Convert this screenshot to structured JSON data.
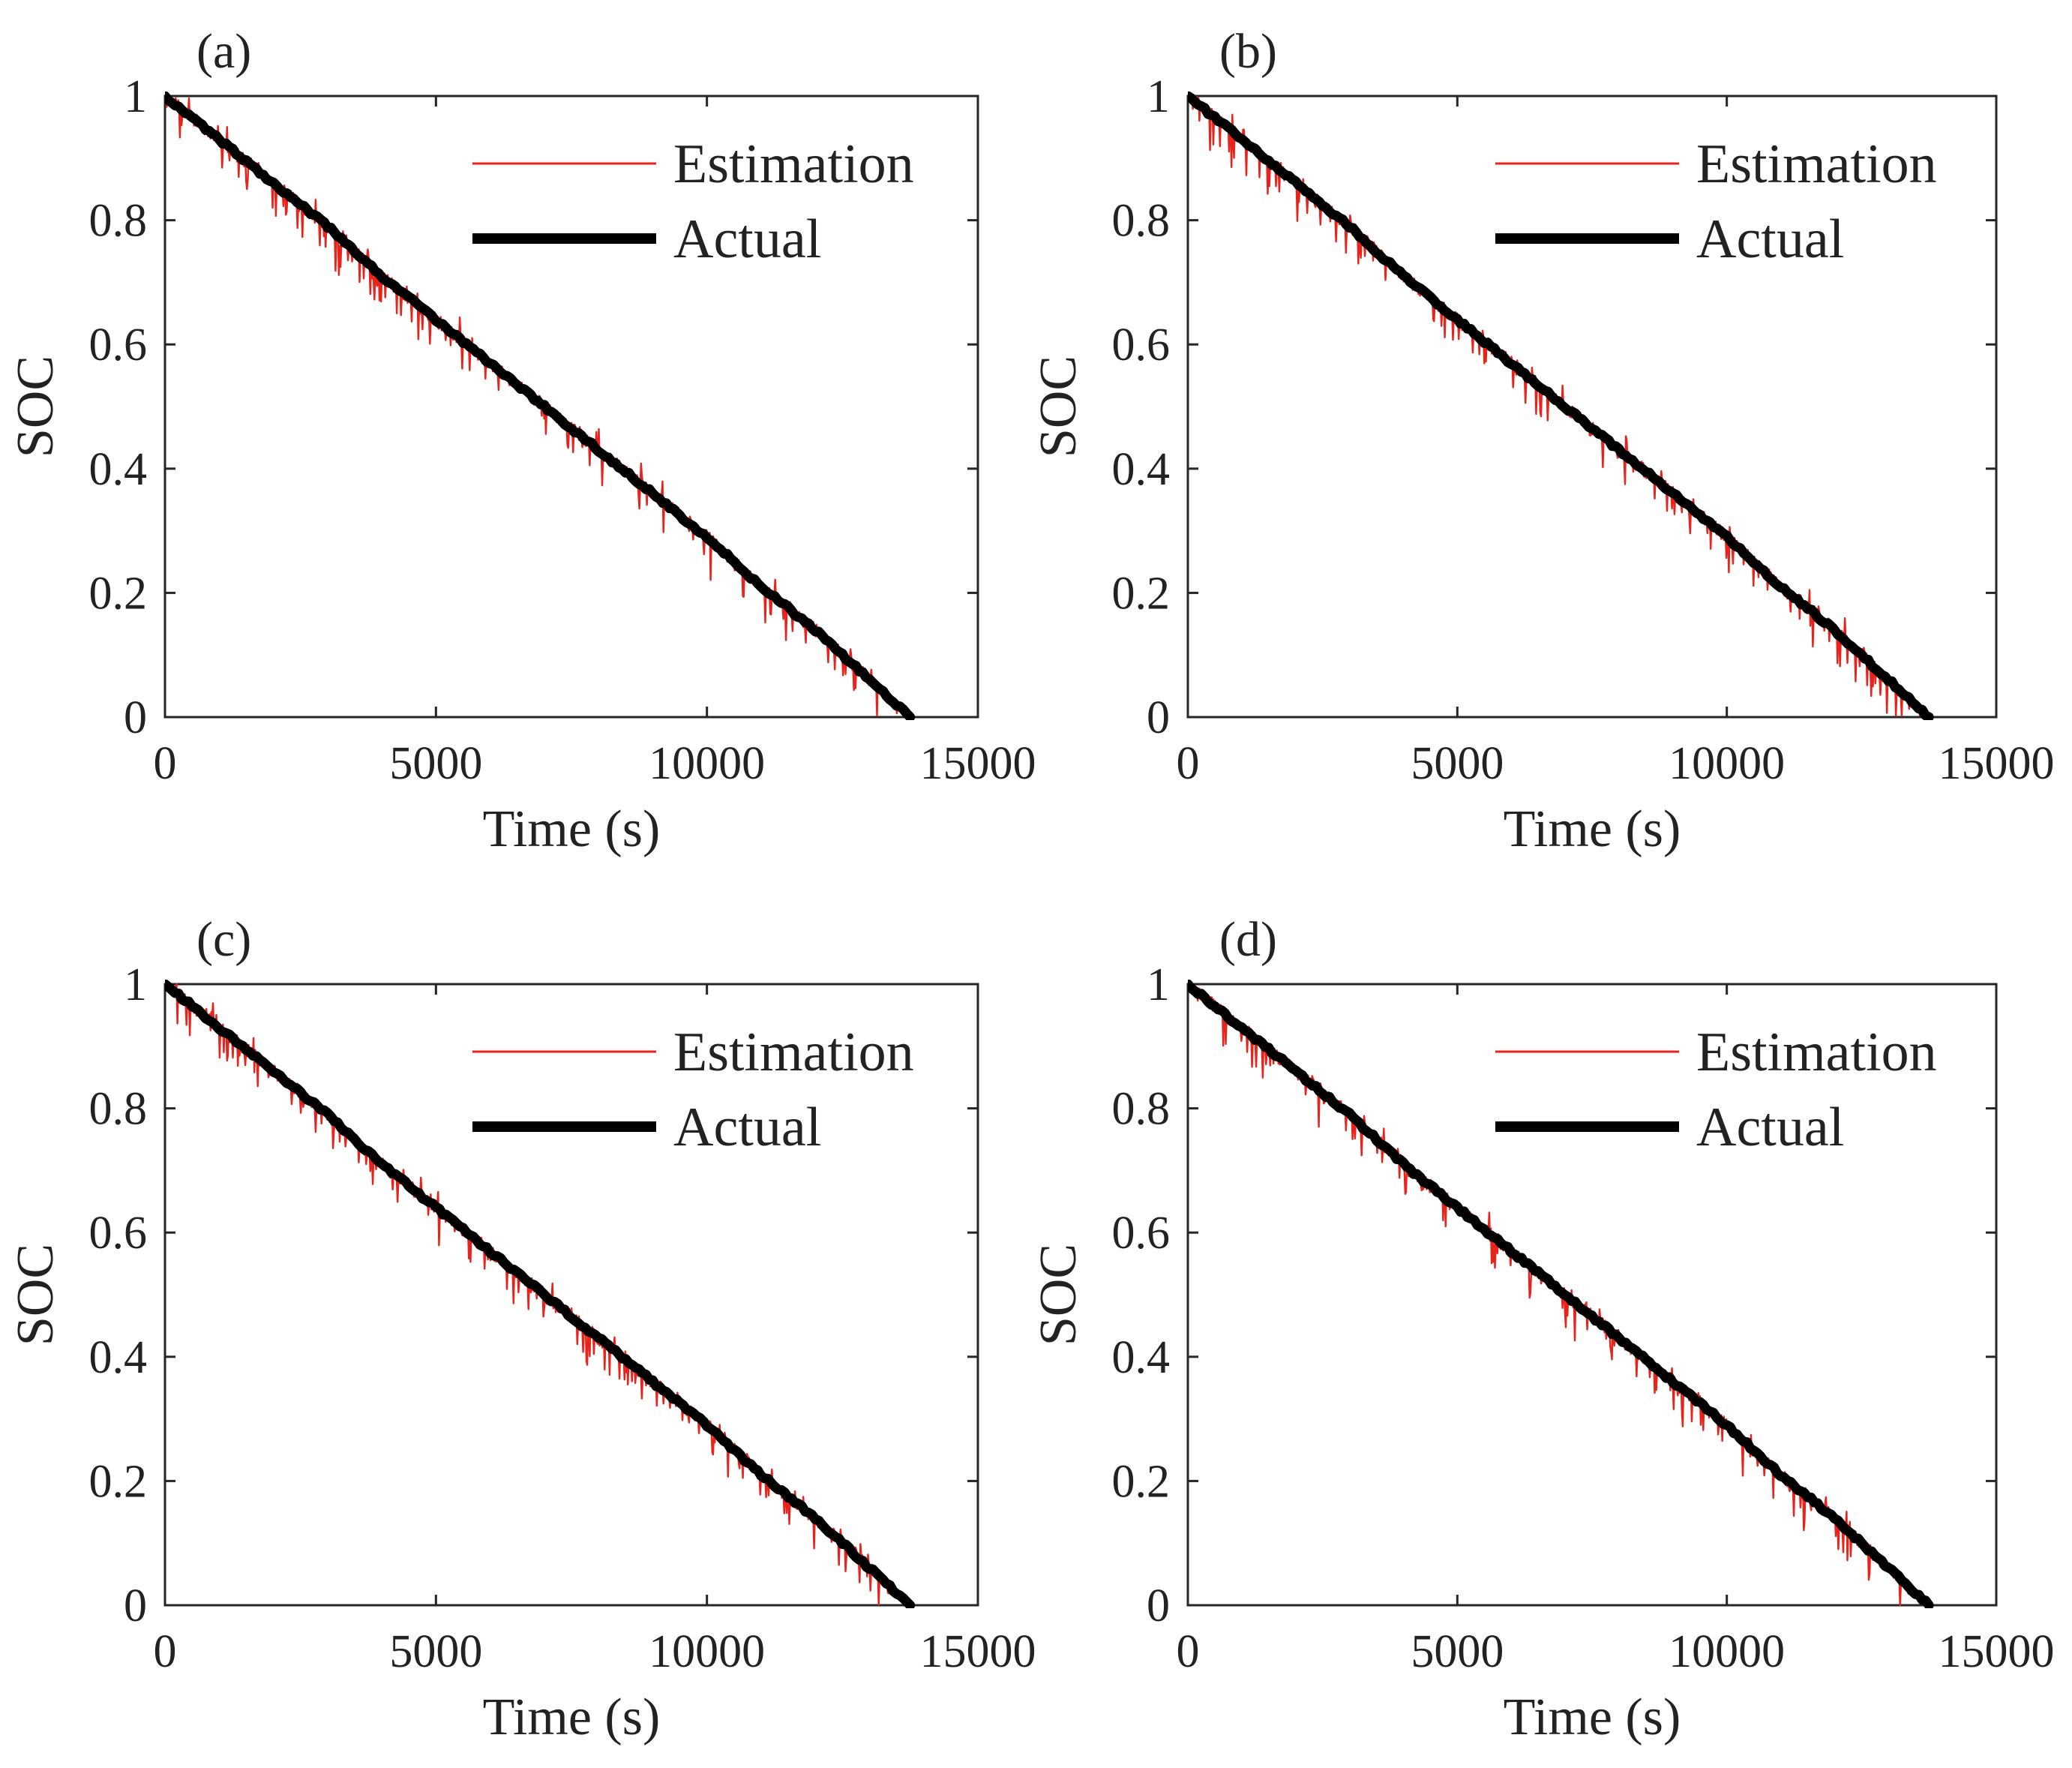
{
  "figure": {
    "description_free": true
  },
  "chart_data": [
    {
      "type": "line",
      "panel_label": "(a)",
      "xlabel": "Time (s)",
      "ylabel": "SOC",
      "xlim": [
        0,
        15000
      ],
      "ylim": [
        0,
        1
      ],
      "xticks": [
        "0",
        "5000",
        "10000",
        "15000"
      ],
      "yticks": [
        "0",
        "0.2",
        "0.4",
        "0.6",
        "0.8",
        "1"
      ],
      "grid": false,
      "legend_position": "top-right",
      "x": [
        0,
        1000,
        2000,
        3000,
        4000,
        5000,
        6000,
        7000,
        8000,
        9000,
        10000,
        11000,
        12000,
        13000,
        13750
      ],
      "series": [
        {
          "name": "Estimation",
          "color": "#e8231c",
          "noise": "spiky, dips up to 0.07 below actual, largest near 8500-10500 s",
          "values": [
            1.0,
            0.93,
            0.86,
            0.79,
            0.71,
            0.64,
            0.57,
            0.5,
            0.43,
            0.36,
            0.29,
            0.21,
            0.14,
            0.06,
            0.0
          ]
        },
        {
          "name": "Actual",
          "color": "#000000",
          "values": [
            1.0,
            0.93,
            0.86,
            0.79,
            0.71,
            0.64,
            0.57,
            0.5,
            0.43,
            0.36,
            0.29,
            0.21,
            0.14,
            0.06,
            0.0
          ]
        }
      ]
    },
    {
      "type": "line",
      "panel_label": "(b)",
      "xlabel": "Time (s)",
      "ylabel": "SOC",
      "xlim": [
        0,
        15000
      ],
      "ylim": [
        0,
        1
      ],
      "xticks": [
        "0",
        "5000",
        "10000",
        "15000"
      ],
      "yticks": [
        "0",
        "0.2",
        "0.4",
        "0.6",
        "0.8",
        "1"
      ],
      "grid": false,
      "legend_position": "top-right",
      "x": [
        0,
        1000,
        2000,
        3000,
        4000,
        5000,
        6000,
        7000,
        8000,
        9000,
        10000,
        11000,
        12000,
        13000,
        13750
      ],
      "series": [
        {
          "name": "Estimation",
          "color": "#e8231c",
          "noise": "spiky, dips up to 0.07 below actual, largest near 8500-11500 s",
          "values": [
            1.0,
            0.93,
            0.86,
            0.79,
            0.71,
            0.64,
            0.57,
            0.5,
            0.43,
            0.36,
            0.29,
            0.21,
            0.14,
            0.06,
            0.0
          ]
        },
        {
          "name": "Actual",
          "color": "#000000",
          "values": [
            1.0,
            0.93,
            0.86,
            0.79,
            0.71,
            0.64,
            0.57,
            0.5,
            0.43,
            0.36,
            0.29,
            0.21,
            0.14,
            0.06,
            0.0
          ]
        }
      ]
    },
    {
      "type": "line",
      "panel_label": "(c)",
      "xlabel": "Time (s)",
      "ylabel": "SOC",
      "xlim": [
        0,
        15000
      ],
      "ylim": [
        0,
        1
      ],
      "xticks": [
        "0",
        "5000",
        "10000",
        "15000"
      ],
      "yticks": [
        "0",
        "0.2",
        "0.4",
        "0.6",
        "0.8",
        "1"
      ],
      "grid": false,
      "legend_position": "top-right",
      "x": [
        0,
        1000,
        2000,
        3000,
        4000,
        5000,
        6000,
        7000,
        8000,
        9000,
        10000,
        11000,
        12000,
        13000,
        13750
      ],
      "series": [
        {
          "name": "Estimation",
          "color": "#e8231c",
          "noise": "spiky, dips up to 0.06 below actual",
          "values": [
            1.0,
            0.93,
            0.86,
            0.79,
            0.71,
            0.64,
            0.57,
            0.5,
            0.43,
            0.36,
            0.29,
            0.21,
            0.14,
            0.06,
            0.0
          ]
        },
        {
          "name": "Actual",
          "color": "#000000",
          "values": [
            1.0,
            0.93,
            0.86,
            0.79,
            0.71,
            0.64,
            0.57,
            0.5,
            0.43,
            0.36,
            0.29,
            0.21,
            0.14,
            0.06,
            0.0
          ]
        }
      ]
    },
    {
      "type": "line",
      "panel_label": "(d)",
      "xlabel": "Time (s)",
      "ylabel": "SOC",
      "xlim": [
        0,
        15000
      ],
      "ylim": [
        0,
        1
      ],
      "xticks": [
        "0",
        "5000",
        "10000",
        "15000"
      ],
      "yticks": [
        "0",
        "0.2",
        "0.4",
        "0.6",
        "0.8",
        "1"
      ],
      "grid": false,
      "legend_position": "top-right",
      "x": [
        0,
        1000,
        2000,
        3000,
        4000,
        5000,
        6000,
        7000,
        8000,
        9000,
        10000,
        11000,
        12000,
        13000,
        13750
      ],
      "series": [
        {
          "name": "Estimation",
          "color": "#e8231c",
          "noise": "spiky, dips up to 0.06 below actual",
          "values": [
            1.0,
            0.93,
            0.86,
            0.79,
            0.71,
            0.64,
            0.57,
            0.5,
            0.43,
            0.36,
            0.29,
            0.21,
            0.14,
            0.06,
            0.0
          ]
        },
        {
          "name": "Actual",
          "color": "#000000",
          "values": [
            1.0,
            0.93,
            0.86,
            0.79,
            0.71,
            0.64,
            0.57,
            0.5,
            0.43,
            0.36,
            0.29,
            0.21,
            0.14,
            0.06,
            0.0
          ]
        }
      ]
    }
  ]
}
